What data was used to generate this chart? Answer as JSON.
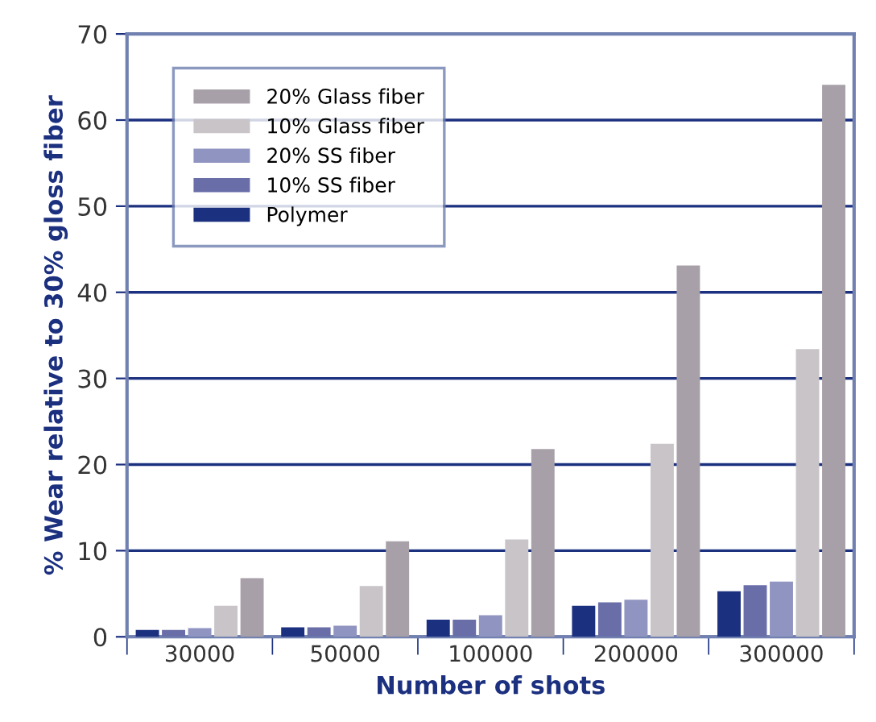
{
  "chart_data": {
    "type": "bar",
    "xlabel": "Number of shots",
    "ylabel": "% Wear relative to 30% gloss fiber",
    "categories": [
      "30000",
      "50000",
      "100000",
      "200000",
      "300000"
    ],
    "series": [
      {
        "name": "Polymer",
        "color": "#1c3080",
        "values": [
          0.8,
          1.1,
          2.0,
          3.6,
          5.3
        ]
      },
      {
        "name": "10% SS fiber",
        "color": "#6a6ea8",
        "values": [
          0.8,
          1.1,
          2.0,
          4.0,
          6.0
        ]
      },
      {
        "name": "20% SS fiber",
        "color": "#9094c0",
        "values": [
          1.0,
          1.3,
          2.5,
          4.3,
          6.4
        ]
      },
      {
        "name": "10% Glass fiber",
        "color": "#c8c4c8",
        "values": [
          3.6,
          5.9,
          11.3,
          22.4,
          33.4
        ]
      },
      {
        "name": "20% Glass fiber",
        "color": "#a8a0a8",
        "values": [
          6.8,
          11.1,
          21.8,
          43.1,
          64.1
        ]
      }
    ],
    "ylim": [
      0,
      70
    ],
    "yticks": [
      0,
      10,
      20,
      30,
      40,
      50,
      60,
      70
    ],
    "grid": "y",
    "legend": "top left"
  }
}
